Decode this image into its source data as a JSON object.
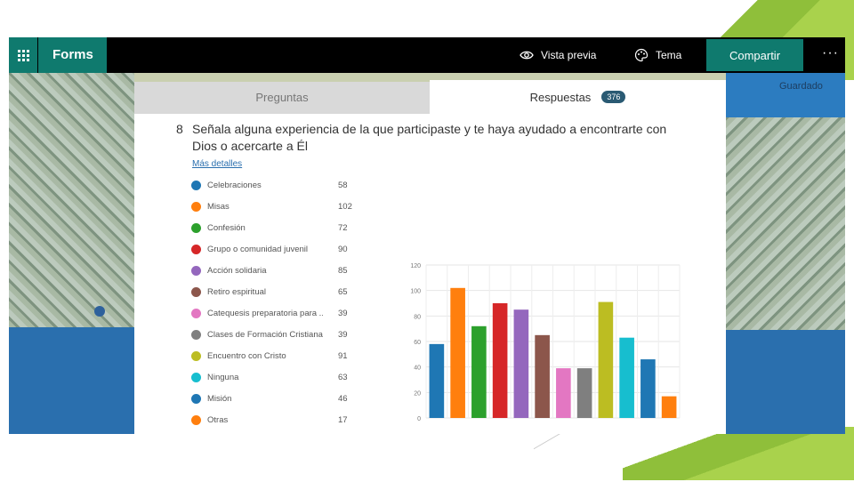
{
  "topbar": {
    "app_name": "Forms",
    "preview_label": "Vista previa",
    "theme_label": "Tema",
    "share_label": "Compartir",
    "more_label": "···"
  },
  "status": {
    "saved": "Guardado"
  },
  "tabs": [
    {
      "label": "Preguntas"
    },
    {
      "label": "Respuestas",
      "badge": "376"
    }
  ],
  "question": {
    "number": "8",
    "text": "Señala alguna experiencia de la que participaste y te haya ayudado a encontrarte con Dios o acercarte a Él",
    "more_details": "Más detalles"
  },
  "legend": [
    {
      "label": "Celebraciones",
      "value": "58",
      "color": "#1f77b4"
    },
    {
      "label": "Misas",
      "value": "102",
      "color": "#ff7f0e"
    },
    {
      "label": "Confesión",
      "value": "72",
      "color": "#2ca02c"
    },
    {
      "label": "Grupo o comunidad juvenil",
      "value": "90",
      "color": "#d62728"
    },
    {
      "label": "Acción solidaria",
      "value": "85",
      "color": "#9467bd"
    },
    {
      "label": "Retiro espiritual",
      "value": "65",
      "color": "#8c564b"
    },
    {
      "label": "Catequesis preparatoria para ...",
      "value": "39",
      "color": "#e377c2"
    },
    {
      "label": "Clases de Formación Cristiana",
      "value": "39",
      "color": "#7f7f7f"
    },
    {
      "label": "Encuentro con Cristo",
      "value": "91",
      "color": "#bcbd22"
    },
    {
      "label": "Ninguna",
      "value": "63",
      "color": "#17becf"
    },
    {
      "label": "Misión",
      "value": "46",
      "color": "#1f77b4"
    },
    {
      "label": "Otras",
      "value": "17",
      "color": "#ff7f0e"
    }
  ],
  "chart_data": {
    "type": "bar",
    "categories": [
      "Celebraciones",
      "Misas",
      "Confesión",
      "Grupo o comunidad juvenil",
      "Acción solidaria",
      "Retiro espiritual",
      "Catequesis preparatoria para ...",
      "Clases de Formación Cristiana",
      "Encuentro con Cristo",
      "Ninguna",
      "Misión",
      "Otras"
    ],
    "values": [
      58,
      102,
      72,
      90,
      85,
      65,
      39,
      39,
      91,
      63,
      46,
      17
    ],
    "colors": [
      "#1f77b4",
      "#ff7f0e",
      "#2ca02c",
      "#d62728",
      "#9467bd",
      "#8c564b",
      "#e377c2",
      "#7f7f7f",
      "#bcbd22",
      "#17becf",
      "#1f77b4",
      "#ff7f0e"
    ],
    "yticks": [
      "0",
      "20",
      "40",
      "60",
      "80",
      "100",
      "120"
    ],
    "ylim": [
      0,
      120
    ],
    "grid": true
  }
}
